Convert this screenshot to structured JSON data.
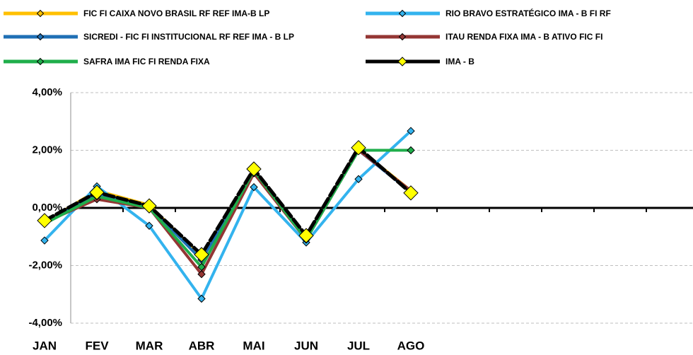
{
  "chart_data": {
    "type": "line",
    "categories": [
      "JAN",
      "FEV",
      "MAR",
      "ABR",
      "MAI",
      "JUN",
      "JUL",
      "AGO",
      null,
      null,
      null,
      null
    ],
    "series": [
      {
        "name": "FIC FI CAIXA NOVO BRASIL RF REF IMA-B LP",
        "color": "#FFC000",
        "values": [
          -0.5,
          0.6,
          0.1,
          -1.7,
          1.3,
          -1.0,
          2.05,
          0.6,
          null,
          null,
          null,
          null
        ]
      },
      {
        "name": "RIO BRAVO ESTRATÉGICO IMA - B FI RF",
        "color": "#33B3EE",
        "values": [
          -1.13,
          0.75,
          -0.62,
          -3.15,
          0.72,
          -1.2,
          1.0,
          2.67,
          null,
          null,
          null,
          null
        ]
      },
      {
        "name": "SICREDI - FIC FI INSTITUCIONAL RF REF IMA - B LP",
        "color": "#1F6FB5",
        "values": [
          -0.5,
          0.5,
          0.05,
          -1.8,
          1.25,
          -1.0,
          2.0,
          0.55,
          null,
          null,
          null,
          null
        ]
      },
      {
        "name": "ITAU RENDA FIXA IMA - B ATIVO FIC FI",
        "color": "#943634",
        "values": [
          -0.5,
          0.3,
          0.0,
          -2.3,
          1.2,
          -1.1,
          2.0,
          0.6,
          null,
          null,
          null,
          null
        ]
      },
      {
        "name": "SAFRA IMA FIC FI RENDA FIXA",
        "color": "#1FAE4B",
        "values": [
          -0.55,
          0.4,
          0.0,
          -2.05,
          1.3,
          -1.1,
          2.0,
          2.0,
          null,
          null,
          null,
          null
        ]
      },
      {
        "name": "IMA - B",
        "color": "#000000",
        "marker_color": "#FFFF00",
        "values": [
          -0.44,
          0.54,
          0.07,
          -1.62,
          1.35,
          -0.96,
          2.09,
          0.52,
          null,
          null,
          null,
          null
        ]
      }
    ],
    "ylim": [
      -4,
      4
    ],
    "yticks": [
      {
        "value": -4,
        "label": "-4,00%"
      },
      {
        "value": -2,
        "label": "-2,00%"
      },
      {
        "value": 0,
        "label": "0,00%"
      },
      {
        "value": 2,
        "label": "2,00%"
      },
      {
        "value": 4,
        "label": "4,00%"
      }
    ],
    "grid": true
  }
}
